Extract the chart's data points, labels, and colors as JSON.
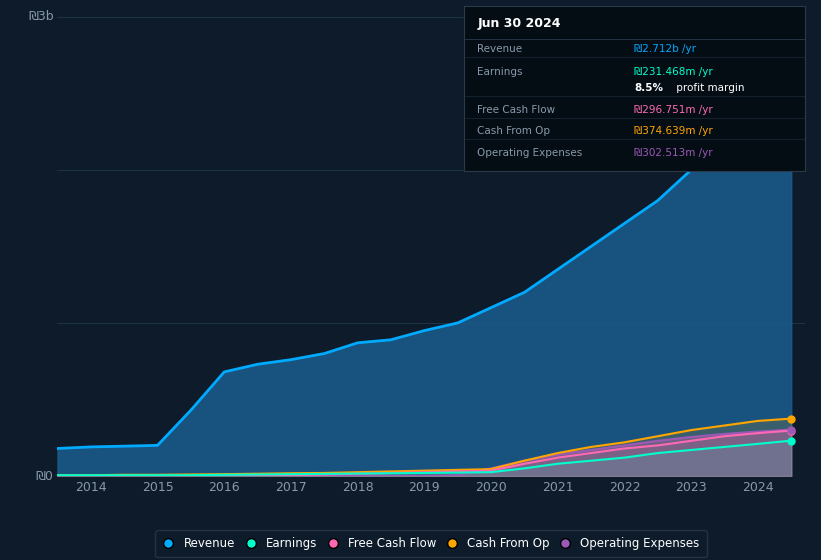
{
  "background_color": "#0d1b2a",
  "plot_bg_color": "#0d1b2a",
  "ylabel_3b": "₪3b",
  "ylabel_0": "₪0",
  "x_years": [
    2013.5,
    2014.0,
    2014.5,
    2015.0,
    2015.5,
    2016.0,
    2016.5,
    2017.0,
    2017.5,
    2018.0,
    2018.5,
    2019.0,
    2019.5,
    2020.0,
    2020.5,
    2021.0,
    2021.5,
    2022.0,
    2022.5,
    2023.0,
    2023.5,
    2024.0,
    2024.5
  ],
  "revenue": [
    180,
    190,
    195,
    200,
    430,
    680,
    730,
    760,
    800,
    870,
    890,
    950,
    1000,
    1100,
    1200,
    1350,
    1500,
    1650,
    1800,
    2000,
    2200,
    2500,
    2712
  ],
  "earnings": [
    5,
    5,
    5,
    5,
    5,
    8,
    10,
    12,
    14,
    16,
    18,
    20,
    22,
    25,
    50,
    80,
    100,
    120,
    150,
    170,
    190,
    210,
    231
  ],
  "free_cash_flow": [
    -5,
    -5,
    -5,
    -3,
    -3,
    0,
    2,
    5,
    10,
    15,
    20,
    25,
    30,
    35,
    80,
    120,
    150,
    180,
    200,
    230,
    260,
    280,
    297
  ],
  "cash_from_op": [
    5,
    5,
    8,
    8,
    10,
    12,
    15,
    18,
    20,
    25,
    30,
    35,
    40,
    45,
    100,
    150,
    190,
    220,
    260,
    300,
    330,
    360,
    375
  ],
  "operating_expenses": [
    0,
    0,
    0,
    0,
    0,
    0,
    0,
    0,
    0,
    0,
    0,
    0,
    5,
    50,
    100,
    140,
    170,
    200,
    230,
    255,
    275,
    290,
    303
  ],
  "revenue_color": "#00aaff",
  "earnings_color": "#00ffcc",
  "free_cash_flow_color": "#ff69b4",
  "cash_from_op_color": "#ffa500",
  "operating_expenses_color": "#9b59b6",
  "revenue_fill": "#1a5a8a",
  "grid_color": "#1e3a4a",
  "text_color": "#8899aa",
  "info_box": {
    "title": "Jun 30 2024",
    "rows": [
      {
        "label": "Revenue",
        "value": "₪2.712b /yr",
        "value_color": "#00aaff"
      },
      {
        "label": "Earnings",
        "value": "₪231.468m /yr",
        "value_color": "#00ffcc"
      },
      {
        "label": "",
        "value": "8.5% profit margin",
        "value_color": "#ffffff"
      },
      {
        "label": "Free Cash Flow",
        "value": "₪296.751m /yr",
        "value_color": "#ff69b4"
      },
      {
        "label": "Cash From Op",
        "value": "₪374.639m /yr",
        "value_color": "#ffa500"
      },
      {
        "label": "Operating Expenses",
        "value": "₪302.513m /yr",
        "value_color": "#9b59b6"
      }
    ]
  },
  "legend": [
    {
      "label": "Revenue",
      "color": "#00aaff"
    },
    {
      "label": "Earnings",
      "color": "#00ffcc"
    },
    {
      "label": "Free Cash Flow",
      "color": "#ff69b4"
    },
    {
      "label": "Cash From Op",
      "color": "#ffa500"
    },
    {
      "label": "Operating Expenses",
      "color": "#9b59b6"
    }
  ],
  "ylim": [
    0,
    3000
  ],
  "xlim": [
    2013.5,
    2024.7
  ]
}
